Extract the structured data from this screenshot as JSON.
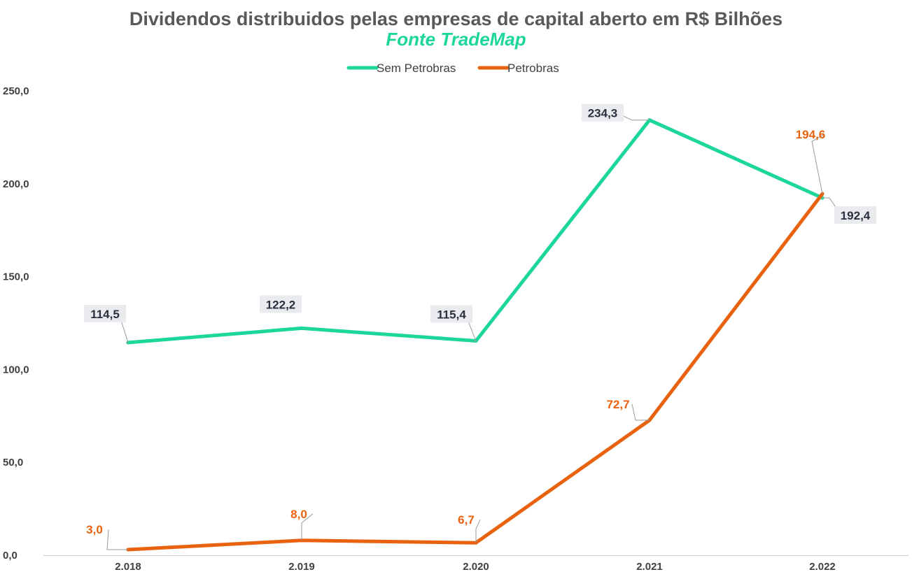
{
  "chart_data": {
    "type": "line",
    "title": "Dividendos distribuidos pelas empresas de capital aberto em R$ Bilhões",
    "subtitle": "Fonte TradeMap",
    "categories": [
      "2.018",
      "2.019",
      "2.020",
      "2.021",
      "2.022"
    ],
    "series": [
      {
        "name": "Sem Petrobras",
        "color": "#1dd69c",
        "values": [
          114.5,
          122.2,
          115.4,
          234.3,
          192.4
        ],
        "labels": [
          "114,5",
          "122,2",
          "115,4",
          "234,3",
          "192,4"
        ]
      },
      {
        "name": "Petrobras",
        "color": "#e8620f",
        "values": [
          3.0,
          8.0,
          6.7,
          72.7,
          194.6
        ],
        "labels": [
          "3,0",
          "8,0",
          "6,7",
          "72,7",
          "194,6"
        ]
      }
    ],
    "y_ticks": [
      0,
      50,
      100,
      150,
      200,
      250
    ],
    "y_tick_labels": [
      "0,0",
      "50,0",
      "100,0",
      "150,0",
      "200,0",
      "250,0"
    ],
    "ylim": [
      0,
      250
    ],
    "grid": false,
    "legend_position": "top-center"
  }
}
